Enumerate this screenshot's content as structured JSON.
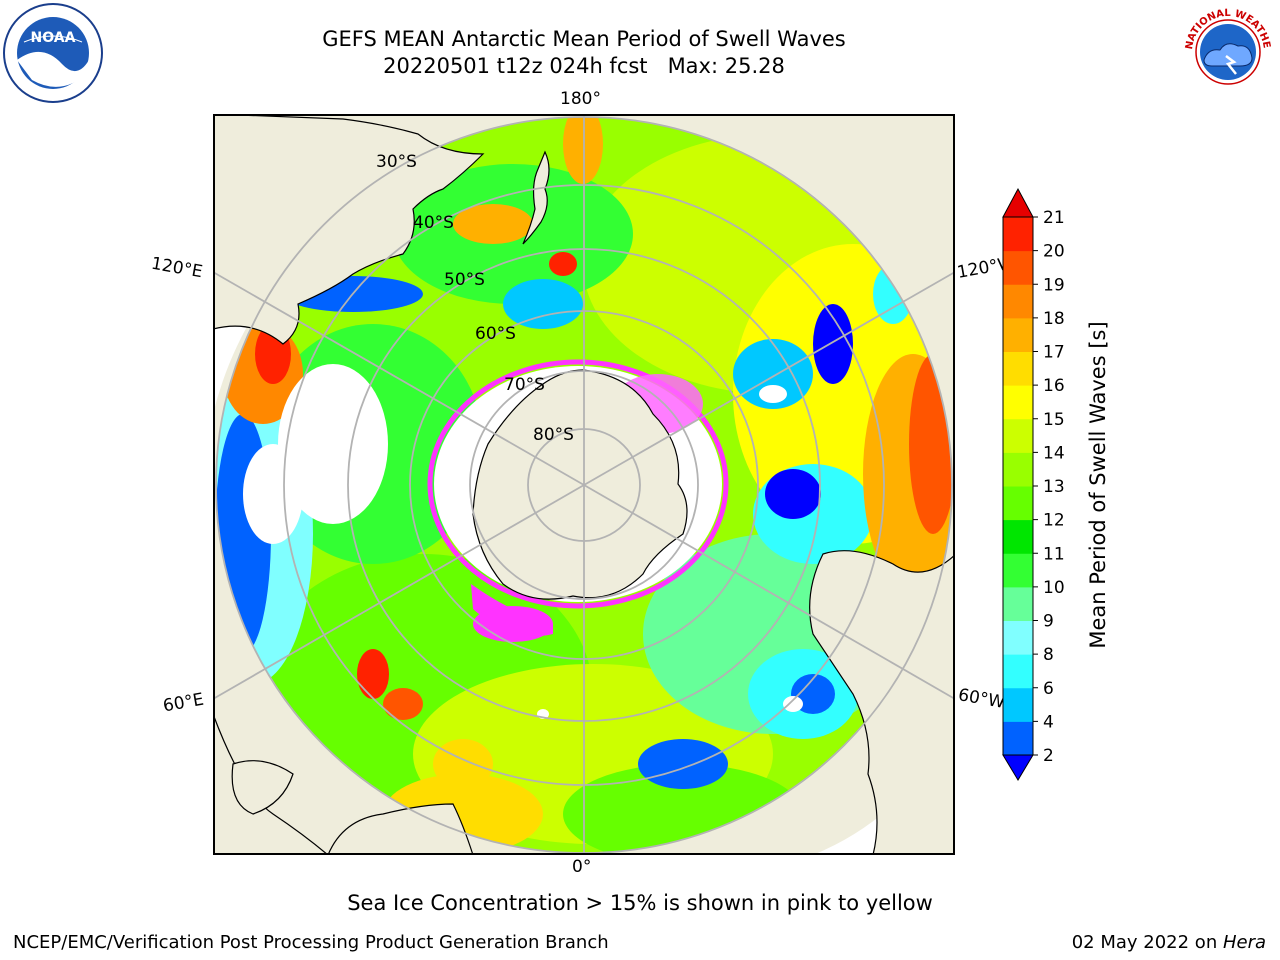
{
  "header": {
    "title_line1": "GEFS MEAN Antarctic Mean Period of Swell Waves",
    "title_line2": "20220501 t12z 024h fcst   Max: 25.28"
  },
  "logos": {
    "left": {
      "text": "NOAA",
      "icon": "noaa-logo-icon"
    },
    "right": {
      "text": "NATIONAL WEATHER SERVICE",
      "icon": "nws-logo-icon"
    }
  },
  "map": {
    "longitude_labels": [
      "180°",
      "120°E",
      "120°W",
      "60°E",
      "60°W",
      "0°"
    ],
    "latitude_labels": [
      "30°S",
      "40°S",
      "50°S",
      "60°S",
      "70°S",
      "80°S"
    ],
    "colors": {
      "land": "#efeddc",
      "ice": "#ff33ff",
      "grid": "#b3b3b3"
    }
  },
  "colorbar": {
    "label": "Mean Period of Swell Waves [s]",
    "ticks": [
      "2",
      "4",
      "6",
      "8",
      "9",
      "10",
      "11",
      "12",
      "13",
      "14",
      "15",
      "16",
      "17",
      "18",
      "19",
      "20",
      "21"
    ],
    "colors": [
      "#0000ff",
      "#0062ff",
      "#00c8ff",
      "#33ffff",
      "#80ffff",
      "#66ff99",
      "#33ff33",
      "#00e600",
      "#66ff00",
      "#99ff00",
      "#ccff00",
      "#ffff00",
      "#ffdd00",
      "#ffb000",
      "#ff8800",
      "#ff5500",
      "#ff2200",
      "#e60000"
    ]
  },
  "caption": "Sea Ice Concentration > 15% is shown in pink to yellow",
  "footer": {
    "left": "NCEP/EMC/Verification Post Processing Product Generation Branch",
    "right_date": "02 May 2022 on ",
    "right_host": "Hera"
  }
}
